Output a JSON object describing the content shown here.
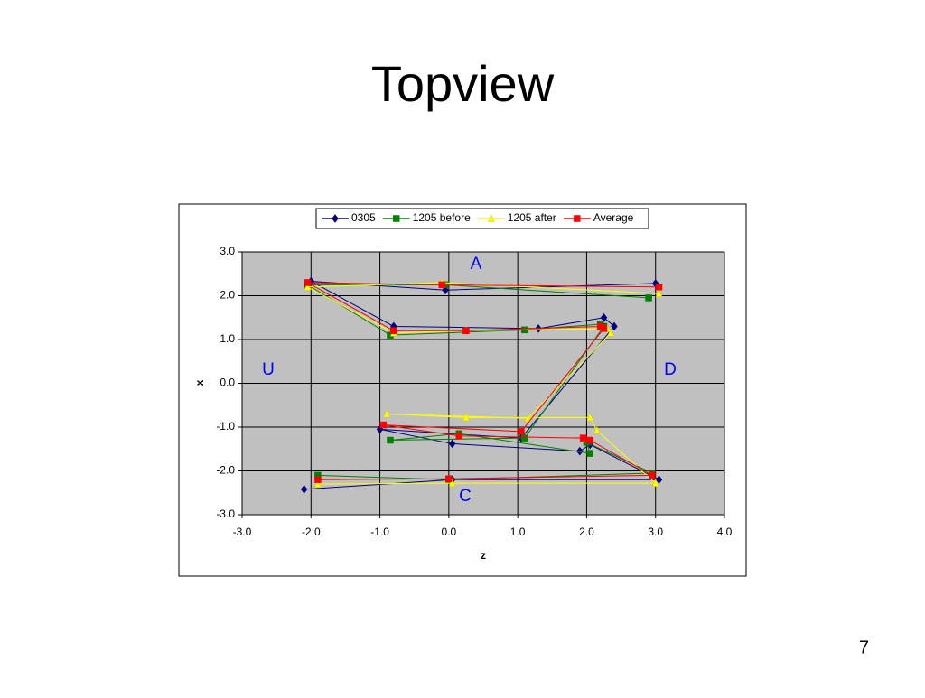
{
  "title": "Topview",
  "page_number": "7",
  "chart_data": {
    "type": "scatter-line",
    "x_label": "z",
    "y_label": "x",
    "xlim": [
      -3.0,
      4.0
    ],
    "ylim": [
      -3.0,
      3.0
    ],
    "xticks": [
      {
        "value": -3,
        "label": "-3.0"
      },
      {
        "value": -2,
        "label": "-2.0"
      },
      {
        "value": -1,
        "label": "-1.0"
      },
      {
        "value": 0,
        "label": "0.0"
      },
      {
        "value": 1,
        "label": "1.0"
      },
      {
        "value": 2,
        "label": "2.0"
      },
      {
        "value": 3,
        "label": "3.0"
      },
      {
        "value": 4,
        "label": "4.0"
      }
    ],
    "yticks": [
      {
        "value": -3,
        "label": "-3.0"
      },
      {
        "value": -2,
        "label": "-2.0"
      },
      {
        "value": -1,
        "label": "-1.0"
      },
      {
        "value": 0,
        "label": "0.0"
      },
      {
        "value": 1,
        "label": "1.0"
      },
      {
        "value": 2,
        "label": "2.0"
      },
      {
        "value": 3,
        "label": "3.0"
      }
    ],
    "grid": true,
    "legend": "top",
    "annotations": [
      "A",
      "U",
      "D",
      "C"
    ],
    "series": [
      {
        "name": "0305",
        "color": "#000080",
        "marker": "diamond",
        "x": [
          3.0,
          -0.05,
          -2.0,
          -0.8,
          1.3,
          2.25,
          2.4,
          1.05,
          -1.0,
          0.05,
          1.9,
          2.05,
          3.05,
          0.05,
          -2.1
        ],
        "y": [
          2.28,
          2.13,
          2.33,
          1.3,
          1.25,
          1.5,
          1.3,
          -1.25,
          -1.05,
          -1.38,
          -1.55,
          -1.4,
          -2.2,
          -2.2,
          -2.42
        ]
      },
      {
        "name": "1205 before",
        "color": "#008000",
        "marker": "square",
        "x": [
          2.9,
          -0.05,
          -2.05,
          -0.85,
          1.1,
          2.2,
          2.25,
          1.1,
          -0.85,
          0.15,
          2.05,
          2.0,
          2.95,
          0.0,
          -1.9
        ],
        "y": [
          1.95,
          2.25,
          2.25,
          1.1,
          1.22,
          1.35,
          1.3,
          -1.25,
          -1.3,
          -1.15,
          -1.6,
          -1.35,
          -2.05,
          -2.2,
          -2.1
        ]
      },
      {
        "name": "1205 after",
        "color": "#ffff00",
        "marker": "triangle",
        "x": [
          3.05,
          -0.1,
          -2.05,
          -0.8,
          0.25,
          2.3,
          2.35,
          1.15,
          -0.9,
          0.25,
          2.05,
          2.15,
          3.0,
          0.05,
          -1.9
        ],
        "y": [
          2.05,
          2.3,
          2.2,
          1.15,
          1.2,
          1.25,
          1.15,
          -0.8,
          -0.7,
          -0.78,
          -0.78,
          -1.08,
          -2.28,
          -2.28,
          -2.3
        ]
      },
      {
        "name": "Average",
        "color": "#ff0000",
        "marker": "square",
        "x": [
          3.05,
          -0.1,
          -2.05,
          -0.8,
          0.25,
          2.2,
          2.25,
          1.05,
          -0.95,
          0.15,
          1.95,
          2.05,
          2.95,
          0.0,
          -1.9
        ],
        "y": [
          2.2,
          2.25,
          2.3,
          1.2,
          1.2,
          1.3,
          1.25,
          -1.1,
          -0.95,
          -1.2,
          -1.25,
          -1.3,
          -2.1,
          -2.18,
          -2.2
        ]
      }
    ]
  }
}
